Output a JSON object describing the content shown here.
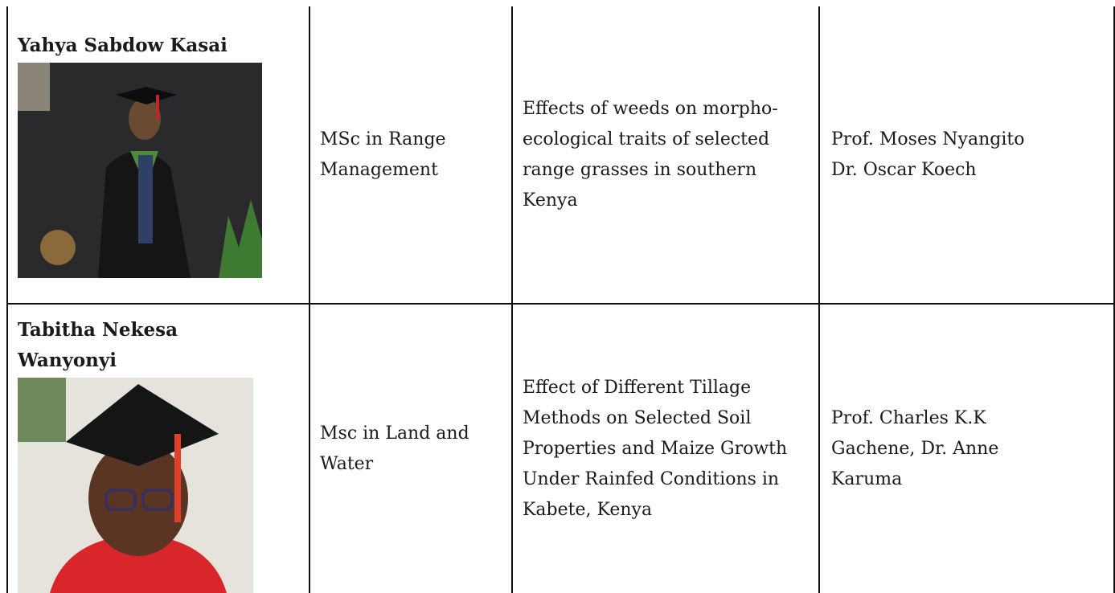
{
  "table": {
    "rows": [
      {
        "name": "Yahya Sabdow Kasai",
        "program": "MSc in Range Management",
        "thesis": "Effects of weeds on morpho-ecological traits of selected range grasses in southern Kenya",
        "supervisors": [
          "Prof. Moses Nyangito",
          "Dr. Oscar Koech"
        ]
      },
      {
        "name": "Tabitha Nekesa Wanyonyi",
        "program": "Msc in Land and Water",
        "thesis": "Effect of Different Tillage Methods on Selected Soil Properties and Maize Growth Under Rainfed Conditions in Kabete, Kenya",
        "supervisors": [
          "Prof. Charles K.K Gachene, Dr. Anne Karuma"
        ]
      }
    ]
  }
}
